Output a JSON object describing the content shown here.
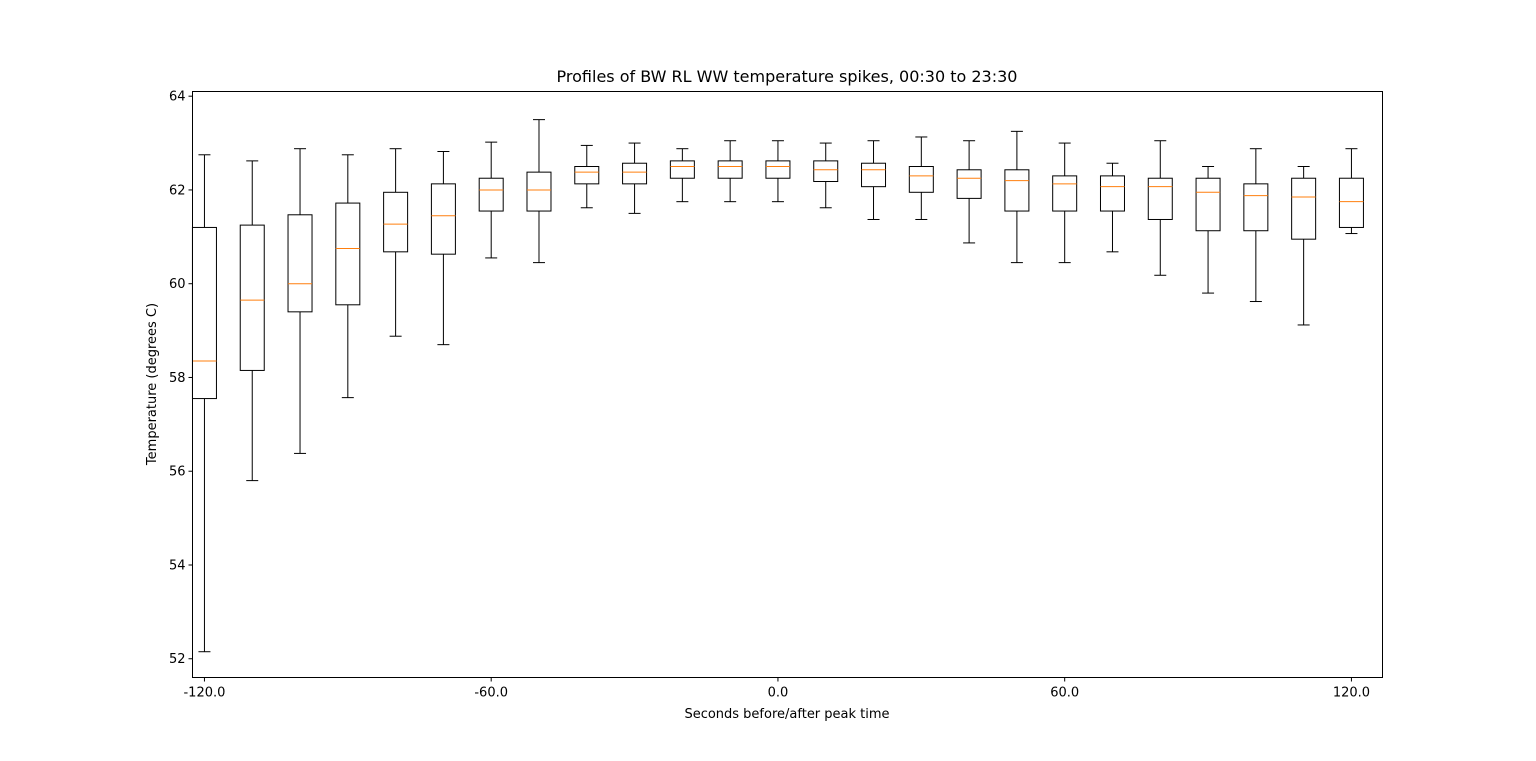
{
  "chart_data": {
    "type": "box",
    "title": "Profiles of BW RL WW temperature spikes, 00:30 to 23:30",
    "xlabel": "Seconds before/after peak time",
    "ylabel": "Temperature (degrees C)",
    "ylim": [
      51.6,
      64.1
    ],
    "xlim": [
      -122.5,
      126.5
    ],
    "yticks": [
      52,
      54,
      56,
      58,
      60,
      62,
      64
    ],
    "xticks": [
      -120.0,
      -60.0,
      0.0,
      60.0,
      120.0
    ],
    "xtick_labels": [
      "-120.0",
      "-60.0",
      "0.0",
      "60.0",
      "120.0"
    ],
    "grid": false,
    "colors": {
      "box": "#000000",
      "median": "#ff7f0e"
    },
    "boxes": [
      {
        "x": -120,
        "whislo": 52.15,
        "q1": 57.55,
        "median": 58.35,
        "q3": 61.2,
        "whishi": 62.75
      },
      {
        "x": -110,
        "whislo": 55.8,
        "q1": 58.15,
        "median": 59.65,
        "q3": 61.25,
        "whishi": 62.62
      },
      {
        "x": -100,
        "whislo": 56.38,
        "q1": 59.4,
        "median": 60.0,
        "q3": 61.47,
        "whishi": 62.88
      },
      {
        "x": -90,
        "whislo": 57.57,
        "q1": 59.55,
        "median": 60.75,
        "q3": 61.72,
        "whishi": 62.75
      },
      {
        "x": -80,
        "whislo": 58.88,
        "q1": 60.68,
        "median": 61.27,
        "q3": 61.95,
        "whishi": 62.88
      },
      {
        "x": -70,
        "whislo": 58.7,
        "q1": 60.63,
        "median": 61.45,
        "q3": 62.13,
        "whishi": 62.82
      },
      {
        "x": -60,
        "whislo": 60.55,
        "q1": 61.55,
        "median": 62.0,
        "q3": 62.25,
        "whishi": 63.02
      },
      {
        "x": -50,
        "whislo": 60.45,
        "q1": 61.55,
        "median": 62.0,
        "q3": 62.38,
        "whishi": 63.5
      },
      {
        "x": -40,
        "whislo": 61.62,
        "q1": 62.13,
        "median": 62.38,
        "q3": 62.5,
        "whishi": 62.95
      },
      {
        "x": -30,
        "whislo": 61.5,
        "q1": 62.13,
        "median": 62.38,
        "q3": 62.57,
        "whishi": 63.0
      },
      {
        "x": -20,
        "whislo": 61.75,
        "q1": 62.25,
        "median": 62.5,
        "q3": 62.62,
        "whishi": 62.88
      },
      {
        "x": -10,
        "whislo": 61.75,
        "q1": 62.25,
        "median": 62.5,
        "q3": 62.62,
        "whishi": 63.05
      },
      {
        "x": 0,
        "whislo": 61.75,
        "q1": 62.25,
        "median": 62.5,
        "q3": 62.62,
        "whishi": 63.05
      },
      {
        "x": 10,
        "whislo": 61.62,
        "q1": 62.18,
        "median": 62.43,
        "q3": 62.62,
        "whishi": 63.0
      },
      {
        "x": 20,
        "whislo": 61.37,
        "q1": 62.07,
        "median": 62.43,
        "q3": 62.57,
        "whishi": 63.05
      },
      {
        "x": 30,
        "whislo": 61.37,
        "q1": 61.95,
        "median": 62.3,
        "q3": 62.5,
        "whishi": 63.13
      },
      {
        "x": 40,
        "whislo": 60.87,
        "q1": 61.82,
        "median": 62.25,
        "q3": 62.43,
        "whishi": 63.05
      },
      {
        "x": 50,
        "whislo": 60.45,
        "q1": 61.55,
        "median": 62.2,
        "q3": 62.43,
        "whishi": 63.25
      },
      {
        "x": 60,
        "whislo": 60.45,
        "q1": 61.55,
        "median": 62.13,
        "q3": 62.3,
        "whishi": 63.0
      },
      {
        "x": 70,
        "whislo": 60.68,
        "q1": 61.55,
        "median": 62.07,
        "q3": 62.3,
        "whishi": 62.57
      },
      {
        "x": 80,
        "whislo": 60.18,
        "q1": 61.37,
        "median": 62.07,
        "q3": 62.25,
        "whishi": 63.05
      },
      {
        "x": 90,
        "whislo": 59.8,
        "q1": 61.13,
        "median": 61.95,
        "q3": 62.25,
        "whishi": 62.5
      },
      {
        "x": 100,
        "whislo": 59.62,
        "q1": 61.13,
        "median": 61.88,
        "q3": 62.13,
        "whishi": 62.88
      },
      {
        "x": 110,
        "whislo": 59.12,
        "q1": 60.95,
        "median": 61.85,
        "q3": 62.25,
        "whishi": 62.5
      },
      {
        "x": 120,
        "whislo": 61.07,
        "q1": 61.2,
        "median": 61.75,
        "q3": 62.25,
        "whishi": 62.88
      }
    ]
  }
}
